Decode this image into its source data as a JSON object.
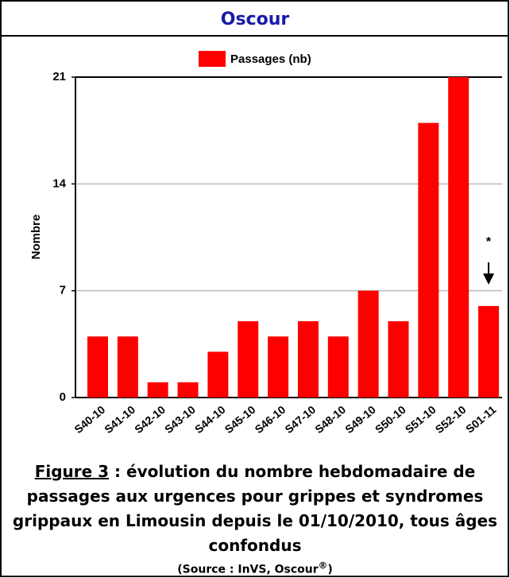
{
  "chart_data": {
    "type": "bar",
    "title": "Oscour",
    "legend": "Passages (nb)",
    "y_label": "Nombre",
    "color": "#ff0000",
    "categories": [
      "S40-10",
      "S41-10",
      "S42-10",
      "S43-10",
      "S44-10",
      "S45-10",
      "S46-10",
      "S47-10",
      "S48-10",
      "S49-10",
      "S50-10",
      "S51-10",
      "S52-10",
      "S01-11"
    ],
    "values": [
      4,
      4,
      1,
      1,
      3,
      5,
      4,
      5,
      4,
      7,
      5,
      18,
      21,
      6
    ],
    "ylim": [
      0,
      21
    ],
    "yticks": [
      0,
      7,
      14,
      21
    ],
    "grid": true,
    "annotation": "*",
    "caption": {
      "figure_label": "Figure 3",
      "text": " : évolution du nombre hebdomadaire de passages aux urgences pour grippes et syndromes grippaux en Limousin depuis le 01/10/2010, tous âges confondus",
      "source_start": "(Source : InVS, Oscour",
      "source_mark": "®",
      "source_end": ")"
    }
  }
}
